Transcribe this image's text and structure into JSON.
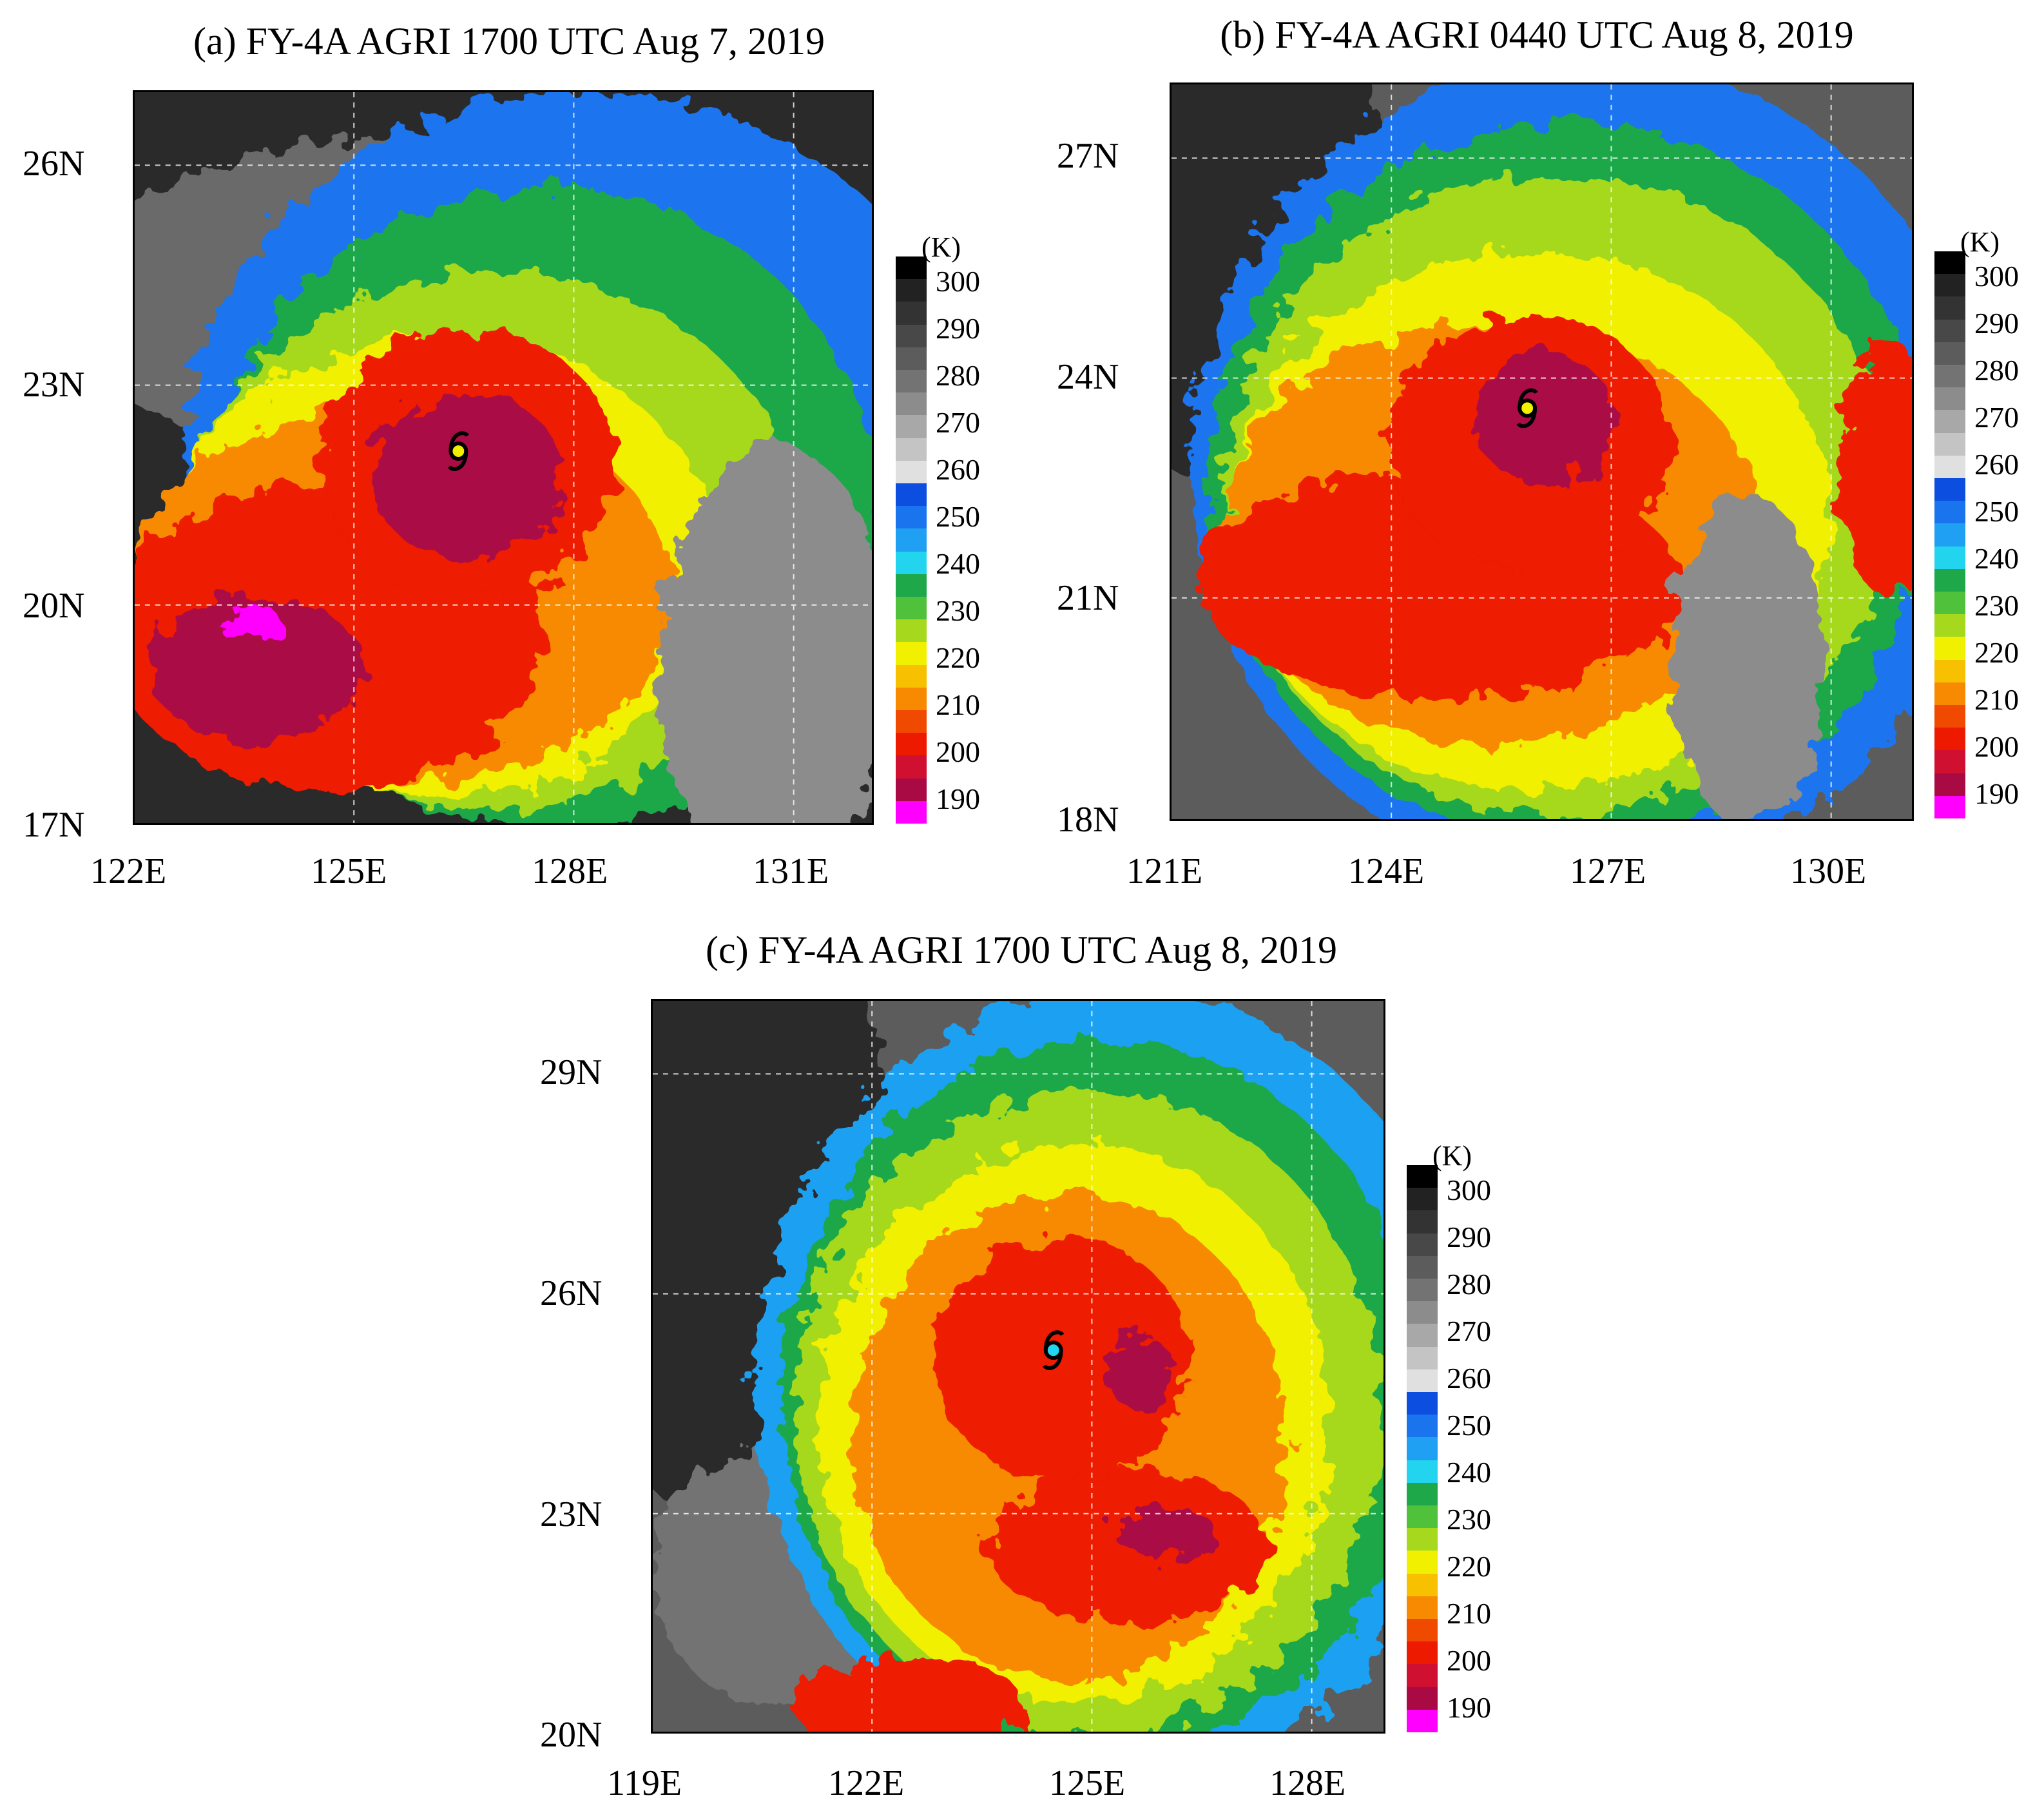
{
  "panels": [
    {
      "id": "a",
      "title": "(a) FY-4A AGRI 1700 UTC Aug 7, 2019",
      "lat_ticks": [
        "26N",
        "23N",
        "20N",
        "17N"
      ],
      "lon_ticks": [
        "122E",
        "125E",
        "128E",
        "131E"
      ]
    },
    {
      "id": "b",
      "title": "(b) FY-4A AGRI 0440 UTC Aug 8, 2019",
      "lat_ticks": [
        "27N",
        "24N",
        "21N",
        "18N"
      ],
      "lon_ticks": [
        "121E",
        "124E",
        "127E",
        "130E"
      ]
    },
    {
      "id": "c",
      "title": "(c) FY-4A AGRI 1700 UTC Aug 8, 2019",
      "lat_ticks": [
        "29N",
        "26N",
        "23N",
        "20N"
      ],
      "lon_ticks": [
        "119E",
        "122E",
        "125E",
        "128E"
      ]
    }
  ],
  "colorbar": {
    "unit": "(K)",
    "labels": [
      "300",
      "290",
      "280",
      "270",
      "260",
      "250",
      "240",
      "230",
      "220",
      "210",
      "200",
      "190"
    ],
    "colors": [
      "#000000",
      "#222222",
      "#333333",
      "#484848",
      "#5c5c5c",
      "#737373",
      "#8c8c8c",
      "#a8a8a8",
      "#c4c4c4",
      "#e0e0e0",
      "#0c4fe0",
      "#1a74ee",
      "#1fa0f2",
      "#22d4ee",
      "#1ea84a",
      "#4fc13a",
      "#a6d81e",
      "#f0f000",
      "#f7c000",
      "#f78a00",
      "#f04a00",
      "#ee1a00",
      "#d01030",
      "#aa0a44",
      "#ff00ff"
    ]
  }
}
